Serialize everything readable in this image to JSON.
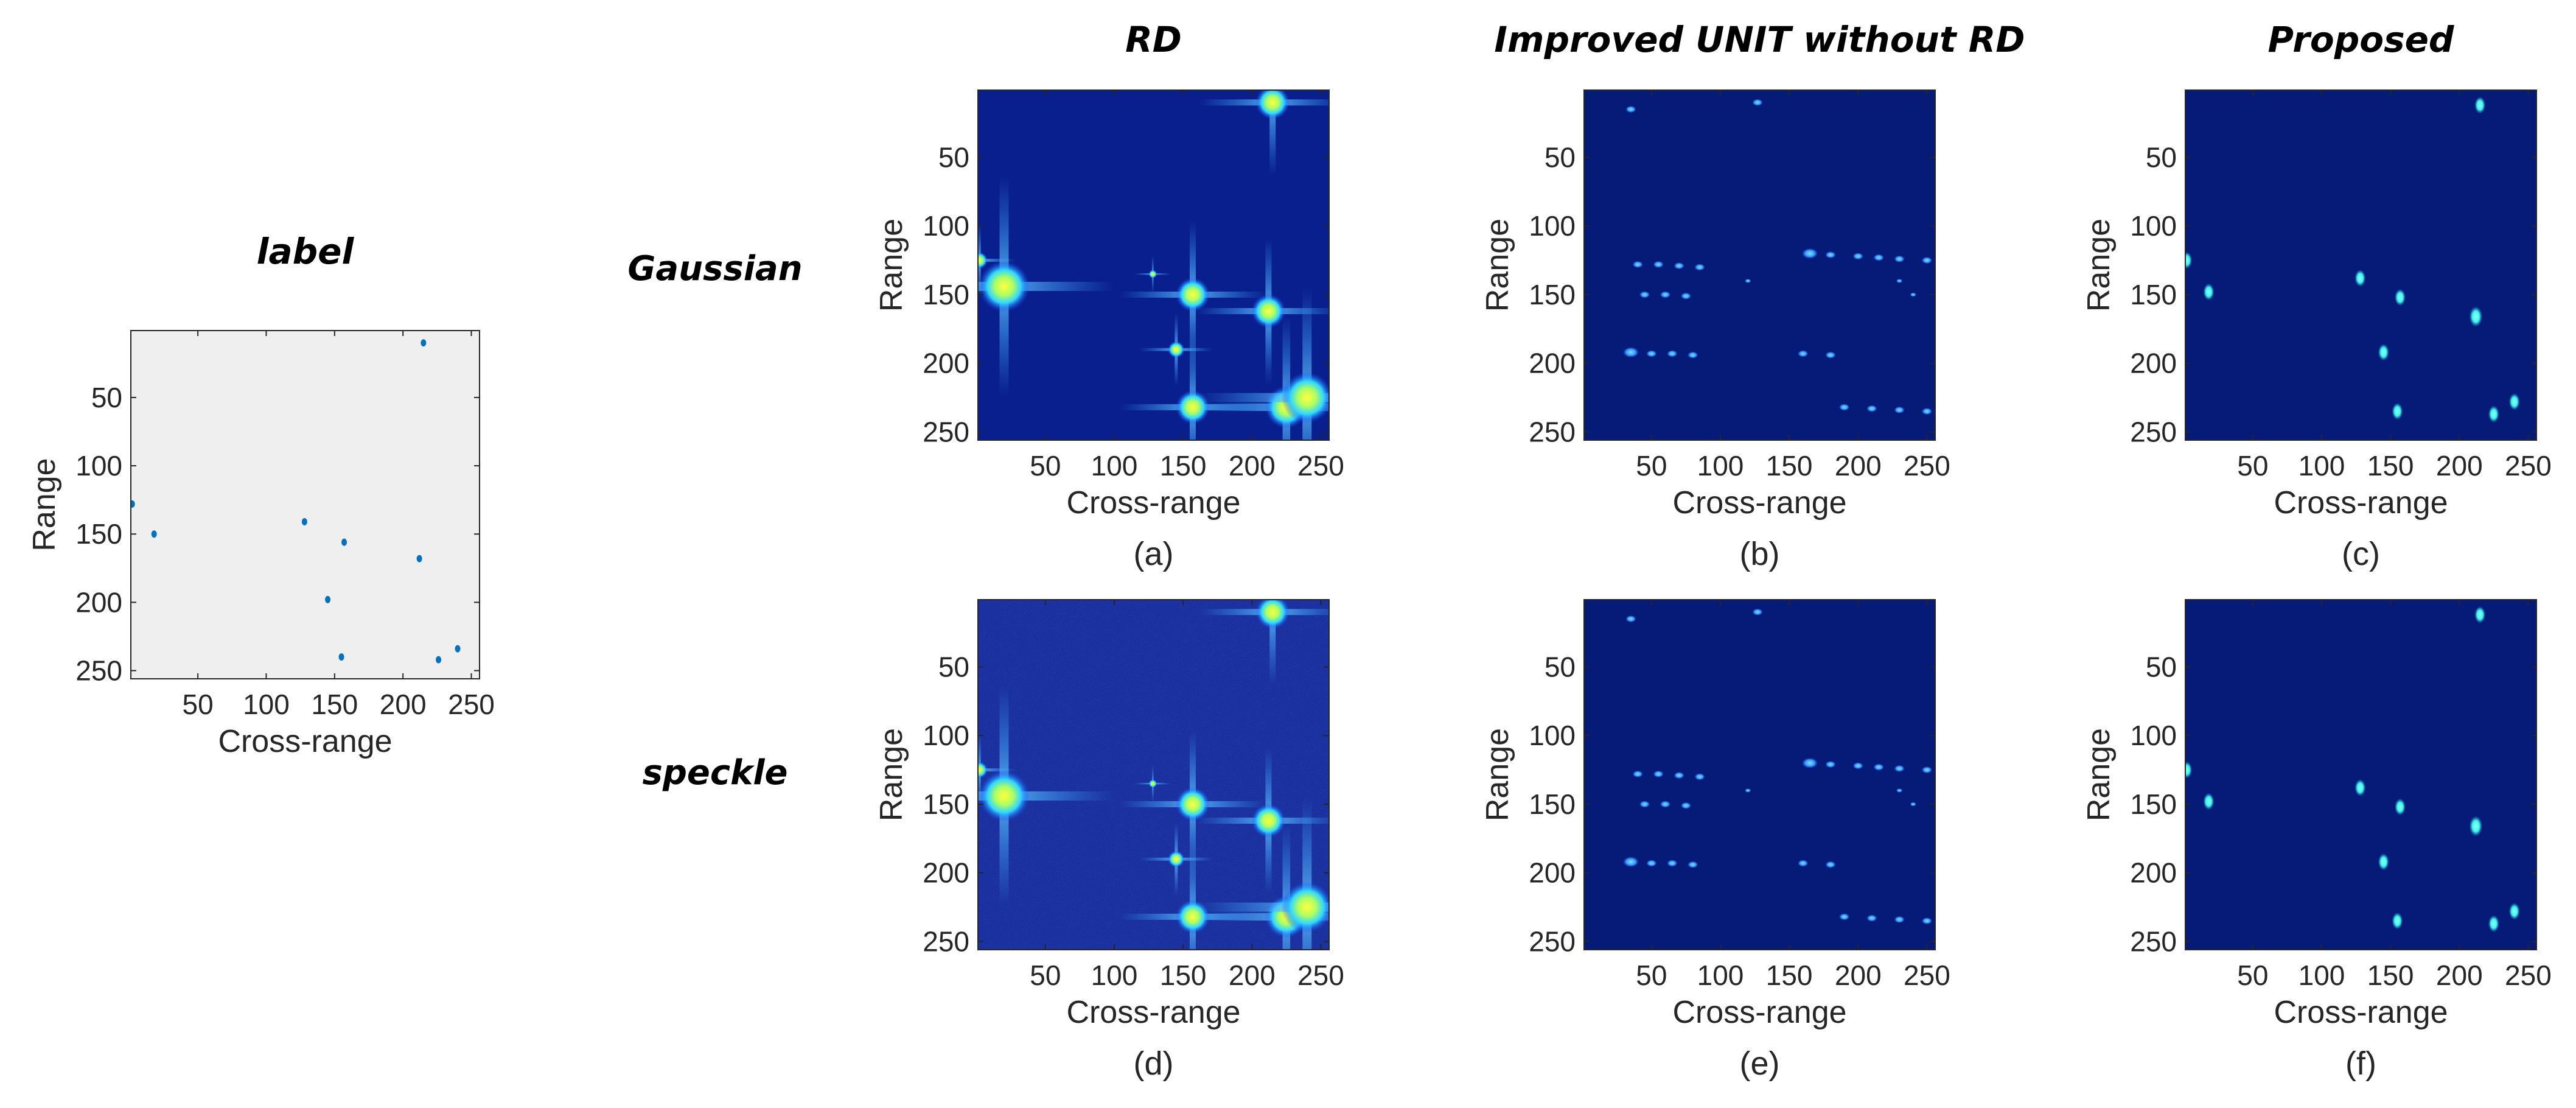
{
  "figure": {
    "row_labels": [
      "Gaussian",
      "speckle"
    ],
    "colors": {
      "label_bg": "#efefef",
      "label_point": "#0072bd",
      "map_bg": "#0a1f8e",
      "map_bg_dark": "#061a78",
      "peak_core": "#ffff40",
      "peak_mid": "#40ffd0",
      "spot_cyan": "#3ff5e8",
      "streak": "#5aa0ff"
    }
  },
  "chart_data": [
    {
      "id": "label",
      "type": "scatter",
      "title": "label",
      "caption": "",
      "xlabel": "Cross-range",
      "ylabel": "Range",
      "xlim": [
        1,
        256
      ],
      "ylim": [
        1,
        256
      ],
      "y_reversed": true,
      "xticks": [
        50,
        100,
        150,
        200,
        250
      ],
      "yticks": [
        50,
        100,
        150,
        200,
        250
      ],
      "points": [
        [
          2,
          128
        ],
        [
          18,
          150
        ],
        [
          128,
          141
        ],
        [
          157,
          156
        ],
        [
          145,
          198
        ],
        [
          155,
          240
        ],
        [
          212,
          168
        ],
        [
          226,
          242
        ],
        [
          240,
          234
        ],
        [
          215,
          10
        ]
      ]
    },
    {
      "id": "a",
      "type": "heatmap",
      "title": "RD",
      "row": "Gaussian",
      "caption": "(a)",
      "xlabel": "Cross-range",
      "ylabel": "Range",
      "xlim": [
        1,
        256
      ],
      "ylim": [
        1,
        256
      ],
      "y_reversed": true,
      "xticks": [
        50,
        100,
        150,
        200,
        250
      ],
      "yticks": [
        50,
        100,
        150,
        200,
        250
      ],
      "style": "rd",
      "noise": false,
      "peaks": [
        [
          20,
          144,
          3
        ],
        [
          157,
          150,
          2
        ],
        [
          212,
          162,
          2
        ],
        [
          145,
          190,
          1
        ],
        [
          157,
          232,
          2
        ],
        [
          225,
          232,
          2.5
        ],
        [
          240,
          225,
          3
        ],
        [
          215,
          10,
          2
        ],
        [
          2,
          125,
          1
        ],
        [
          128,
          135,
          0.5
        ]
      ]
    },
    {
      "id": "b",
      "type": "heatmap",
      "title": "Improved UNIT without RD",
      "row": "Gaussian",
      "caption": "(b)",
      "xlabel": "Cross-range",
      "ylabel": "Range",
      "xlim": [
        1,
        256
      ],
      "ylim": [
        1,
        256
      ],
      "y_reversed": true,
      "xticks": [
        50,
        100,
        150,
        200,
        250
      ],
      "yticks": [
        50,
        100,
        150,
        200,
        250
      ],
      "style": "unit",
      "noise": false,
      "peaks": [
        [
          35,
          15,
          1
        ],
        [
          127,
          10,
          1
        ],
        [
          165,
          120,
          1.5
        ],
        [
          180,
          121,
          1
        ],
        [
          200,
          122,
          1
        ],
        [
          215,
          123,
          1
        ],
        [
          230,
          124,
          1
        ],
        [
          250,
          125,
          1
        ],
        [
          40,
          128,
          1
        ],
        [
          55,
          128,
          1
        ],
        [
          70,
          129,
          1
        ],
        [
          85,
          130,
          1
        ],
        [
          45,
          150,
          1
        ],
        [
          60,
          150,
          1
        ],
        [
          75,
          151,
          1
        ],
        [
          35,
          192,
          1.5
        ],
        [
          50,
          193,
          1
        ],
        [
          65,
          193,
          1
        ],
        [
          80,
          194,
          1
        ],
        [
          160,
          193,
          1
        ],
        [
          180,
          194,
          1
        ],
        [
          190,
          232,
          1
        ],
        [
          210,
          233,
          1
        ],
        [
          230,
          234,
          1
        ],
        [
          250,
          235,
          1
        ],
        [
          120,
          140,
          0.6
        ],
        [
          230,
          140,
          0.6
        ],
        [
          240,
          150,
          0.6
        ]
      ]
    },
    {
      "id": "c",
      "type": "heatmap",
      "title": "Proposed",
      "row": "Gaussian",
      "caption": "(c)",
      "xlabel": "Cross-range",
      "ylabel": "Range",
      "xlim": [
        1,
        256
      ],
      "ylim": [
        1,
        256
      ],
      "y_reversed": true,
      "xticks": [
        50,
        100,
        150,
        200,
        250
      ],
      "yticks": [
        50,
        100,
        150,
        200,
        250
      ],
      "style": "spot",
      "noise": false,
      "peaks": [
        [
          215,
          12,
          1
        ],
        [
          2,
          125,
          1
        ],
        [
          18,
          148,
          1
        ],
        [
          128,
          138,
          1
        ],
        [
          157,
          152,
          1
        ],
        [
          212,
          166,
          1.2
        ],
        [
          145,
          192,
          1
        ],
        [
          155,
          235,
          1
        ],
        [
          225,
          237,
          1
        ],
        [
          240,
          228,
          1
        ]
      ]
    },
    {
      "id": "d",
      "type": "heatmap",
      "row": "speckle",
      "caption": "(d)",
      "xlabel": "Cross-range",
      "ylabel": "Range",
      "xlim": [
        1,
        256
      ],
      "ylim": [
        1,
        256
      ],
      "y_reversed": true,
      "xticks": [
        50,
        100,
        150,
        200,
        250
      ],
      "yticks": [
        50,
        100,
        150,
        200,
        250
      ],
      "style": "rd",
      "noise": true,
      "peaks": [
        [
          20,
          144,
          3
        ],
        [
          157,
          150,
          2
        ],
        [
          212,
          162,
          2
        ],
        [
          145,
          190,
          1
        ],
        [
          157,
          232,
          2
        ],
        [
          225,
          232,
          2.5
        ],
        [
          240,
          225,
          3
        ],
        [
          215,
          10,
          2
        ],
        [
          2,
          125,
          1
        ],
        [
          128,
          135,
          0.5
        ]
      ]
    },
    {
      "id": "e",
      "type": "heatmap",
      "row": "speckle",
      "caption": "(e)",
      "xlabel": "Cross-range",
      "ylabel": "Range",
      "xlim": [
        1,
        256
      ],
      "ylim": [
        1,
        256
      ],
      "y_reversed": true,
      "xticks": [
        50,
        100,
        150,
        200,
        250
      ],
      "yticks": [
        50,
        100,
        150,
        200,
        250
      ],
      "style": "unit",
      "noise": false,
      "peaks": [
        [
          35,
          15,
          1
        ],
        [
          127,
          10,
          1
        ],
        [
          165,
          120,
          1.5
        ],
        [
          180,
          121,
          1
        ],
        [
          200,
          122,
          1
        ],
        [
          215,
          123,
          1
        ],
        [
          230,
          124,
          1
        ],
        [
          250,
          125,
          1
        ],
        [
          40,
          128,
          1
        ],
        [
          55,
          128,
          1
        ],
        [
          70,
          129,
          1
        ],
        [
          85,
          130,
          1
        ],
        [
          45,
          150,
          1
        ],
        [
          60,
          150,
          1
        ],
        [
          75,
          151,
          1
        ],
        [
          35,
          192,
          1.5
        ],
        [
          50,
          193,
          1
        ],
        [
          65,
          193,
          1
        ],
        [
          80,
          194,
          1
        ],
        [
          160,
          193,
          1
        ],
        [
          180,
          194,
          1
        ],
        [
          190,
          232,
          1
        ],
        [
          210,
          233,
          1
        ],
        [
          230,
          234,
          1
        ],
        [
          250,
          235,
          1
        ],
        [
          120,
          140,
          0.6
        ],
        [
          230,
          140,
          0.6
        ],
        [
          240,
          150,
          0.6
        ]
      ]
    },
    {
      "id": "f",
      "type": "heatmap",
      "row": "speckle",
      "caption": "(f)",
      "xlabel": "Cross-range",
      "ylabel": "Range",
      "xlim": [
        1,
        256
      ],
      "ylim": [
        1,
        256
      ],
      "y_reversed": true,
      "xticks": [
        50,
        100,
        150,
        200,
        250
      ],
      "yticks": [
        50,
        100,
        150,
        200,
        250
      ],
      "style": "spot",
      "noise": false,
      "peaks": [
        [
          215,
          12,
          1
        ],
        [
          2,
          125,
          1
        ],
        [
          18,
          148,
          1
        ],
        [
          128,
          138,
          1
        ],
        [
          157,
          152,
          1
        ],
        [
          212,
          166,
          1.2
        ],
        [
          145,
          192,
          1
        ],
        [
          155,
          235,
          1
        ],
        [
          225,
          237,
          1
        ],
        [
          240,
          228,
          1
        ]
      ]
    }
  ]
}
